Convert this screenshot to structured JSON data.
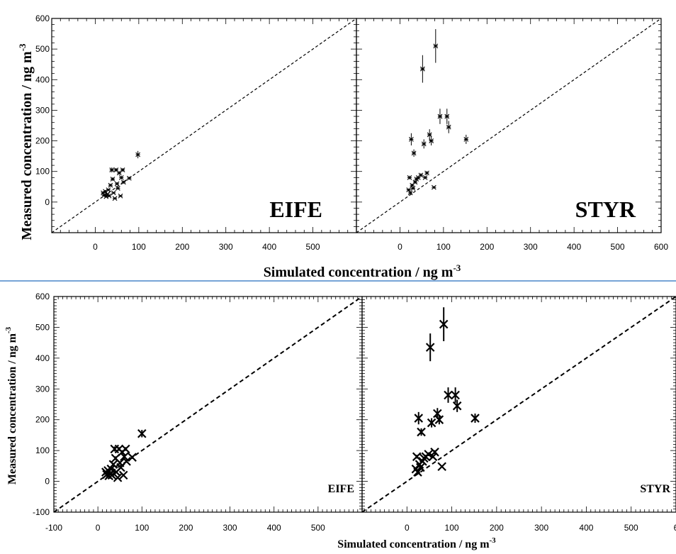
{
  "figure": {
    "top_ylabel": "Measured concentration /  ng m",
    "top_ylabel_sup": "-3",
    "top_xlabel": "Simulated concentration / ng m",
    "top_xlabel_sup": "-3",
    "bottom_ylabel": "Measured concentration / ng m",
    "bottom_ylabel_sup": "-3",
    "bottom_xlabel": "Simulated concentration / ng m",
    "bottom_xlabel_sup": "-3",
    "divider_color": "#4a86c8"
  },
  "chart_data": [
    {
      "id": "top-eife",
      "type": "scatter",
      "label": "EIFE",
      "xlim": [
        -100,
        600
      ],
      "ylim": [
        -100,
        600
      ],
      "xticks": [
        0,
        100,
        200,
        300,
        400,
        500
      ],
      "yticks": [
        0,
        100,
        200,
        300,
        400,
        500,
        600
      ],
      "reference_line": "1:1 dashed",
      "points": [
        {
          "x": 18,
          "y": 30,
          "err": 4
        },
        {
          "x": 20,
          "y": 22,
          "err": 3
        },
        {
          "x": 23,
          "y": 35,
          "err": 4
        },
        {
          "x": 25,
          "y": 18,
          "err": 3
        },
        {
          "x": 28,
          "y": 25,
          "err": 3
        },
        {
          "x": 30,
          "y": 40,
          "err": 4
        },
        {
          "x": 32,
          "y": 20,
          "err": 3
        },
        {
          "x": 35,
          "y": 55,
          "err": 5
        },
        {
          "x": 38,
          "y": 105,
          "err": 8
        },
        {
          "x": 40,
          "y": 75,
          "err": 6
        },
        {
          "x": 42,
          "y": 30,
          "err": 3
        },
        {
          "x": 45,
          "y": 12,
          "err": 3
        },
        {
          "x": 48,
          "y": 105,
          "err": 6
        },
        {
          "x": 50,
          "y": 60,
          "err": 5
        },
        {
          "x": 52,
          "y": 45,
          "err": 4
        },
        {
          "x": 55,
          "y": 95,
          "err": 6
        },
        {
          "x": 58,
          "y": 20,
          "err": 3
        },
        {
          "x": 60,
          "y": 80,
          "err": 6
        },
        {
          "x": 63,
          "y": 105,
          "err": 6
        },
        {
          "x": 65,
          "y": 65,
          "err": 5
        },
        {
          "x": 78,
          "y": 78,
          "err": 5
        },
        {
          "x": 98,
          "y": 155,
          "err": 12
        }
      ]
    },
    {
      "id": "top-styr",
      "type": "scatter",
      "label": "STYR",
      "xlim": [
        -100,
        600
      ],
      "ylim": [
        -100,
        600
      ],
      "xticks": [
        0,
        100,
        200,
        300,
        400,
        500,
        600
      ],
      "yticks": [
        0,
        100,
        200,
        300,
        400,
        500,
        600
      ],
      "reference_line": "1:1 dashed",
      "points": [
        {
          "x": 20,
          "y": 40,
          "err": 4
        },
        {
          "x": 22,
          "y": 80,
          "err": 6
        },
        {
          "x": 24,
          "y": 30,
          "err": 4
        },
        {
          "x": 26,
          "y": 205,
          "err": 20
        },
        {
          "x": 28,
          "y": 55,
          "err": 5
        },
        {
          "x": 30,
          "y": 45,
          "err": 4
        },
        {
          "x": 32,
          "y": 160,
          "err": 12
        },
        {
          "x": 35,
          "y": 65,
          "err": 5
        },
        {
          "x": 38,
          "y": 75,
          "err": 5
        },
        {
          "x": 42,
          "y": 80,
          "err": 6
        },
        {
          "x": 48,
          "y": 88,
          "err": 6
        },
        {
          "x": 52,
          "y": 435,
          "err": 45
        },
        {
          "x": 55,
          "y": 190,
          "err": 15
        },
        {
          "x": 58,
          "y": 80,
          "err": 5
        },
        {
          "x": 62,
          "y": 95,
          "err": 6
        },
        {
          "x": 68,
          "y": 220,
          "err": 18
        },
        {
          "x": 72,
          "y": 200,
          "err": 15
        },
        {
          "x": 78,
          "y": 48,
          "err": 4
        },
        {
          "x": 82,
          "y": 510,
          "err": 55
        },
        {
          "x": 92,
          "y": 280,
          "err": 25
        },
        {
          "x": 108,
          "y": 280,
          "err": 25
        },
        {
          "x": 112,
          "y": 245,
          "err": 20
        },
        {
          "x": 152,
          "y": 205,
          "err": 15
        }
      ]
    },
    {
      "id": "bottom-eife",
      "type": "scatter",
      "label": "EIFE",
      "xlim": [
        -100,
        600
      ],
      "ylim": [
        -100,
        600
      ],
      "xticks": [
        -100,
        0,
        100,
        200,
        300,
        400,
        500
      ],
      "yticks": [
        -100,
        0,
        100,
        200,
        300,
        400,
        500,
        600
      ],
      "reference_line": "1:1 dashed",
      "points": [
        {
          "x": 18,
          "y": 30,
          "err": 4
        },
        {
          "x": 20,
          "y": 22,
          "err": 3
        },
        {
          "x": 23,
          "y": 35,
          "err": 4
        },
        {
          "x": 25,
          "y": 18,
          "err": 3
        },
        {
          "x": 28,
          "y": 25,
          "err": 3
        },
        {
          "x": 30,
          "y": 40,
          "err": 4
        },
        {
          "x": 32,
          "y": 20,
          "err": 3
        },
        {
          "x": 35,
          "y": 55,
          "err": 5
        },
        {
          "x": 38,
          "y": 105,
          "err": 8
        },
        {
          "x": 40,
          "y": 75,
          "err": 6
        },
        {
          "x": 42,
          "y": 30,
          "err": 3
        },
        {
          "x": 45,
          "y": 12,
          "err": 3
        },
        {
          "x": 48,
          "y": 105,
          "err": 6
        },
        {
          "x": 50,
          "y": 60,
          "err": 5
        },
        {
          "x": 52,
          "y": 45,
          "err": 4
        },
        {
          "x": 55,
          "y": 95,
          "err": 6
        },
        {
          "x": 58,
          "y": 20,
          "err": 3
        },
        {
          "x": 60,
          "y": 80,
          "err": 6
        },
        {
          "x": 63,
          "y": 105,
          "err": 6
        },
        {
          "x": 65,
          "y": 65,
          "err": 5
        },
        {
          "x": 78,
          "y": 78,
          "err": 5
        },
        {
          "x": 100,
          "y": 155,
          "err": 12
        }
      ]
    },
    {
      "id": "bottom-styr",
      "type": "scatter",
      "label": "STYR",
      "xlim": [
        -100,
        600
      ],
      "ylim": [
        -100,
        600
      ],
      "xticks": [
        0,
        100,
        200,
        300,
        400,
        500
      ],
      "yticks": [],
      "clipped_tick_label": "6",
      "reference_line": "1:1 dashed",
      "points": [
        {
          "x": 20,
          "y": 40,
          "err": 4
        },
        {
          "x": 22,
          "y": 80,
          "err": 6
        },
        {
          "x": 24,
          "y": 30,
          "err": 4
        },
        {
          "x": 26,
          "y": 205,
          "err": 20
        },
        {
          "x": 28,
          "y": 55,
          "err": 5
        },
        {
          "x": 30,
          "y": 45,
          "err": 4
        },
        {
          "x": 32,
          "y": 160,
          "err": 12
        },
        {
          "x": 35,
          "y": 65,
          "err": 5
        },
        {
          "x": 38,
          "y": 75,
          "err": 5
        },
        {
          "x": 42,
          "y": 80,
          "err": 6
        },
        {
          "x": 48,
          "y": 88,
          "err": 6
        },
        {
          "x": 52,
          "y": 435,
          "err": 45
        },
        {
          "x": 55,
          "y": 190,
          "err": 15
        },
        {
          "x": 58,
          "y": 80,
          "err": 5
        },
        {
          "x": 62,
          "y": 95,
          "err": 6
        },
        {
          "x": 68,
          "y": 220,
          "err": 18
        },
        {
          "x": 72,
          "y": 200,
          "err": 15
        },
        {
          "x": 78,
          "y": 48,
          "err": 4
        },
        {
          "x": 82,
          "y": 510,
          "err": 55
        },
        {
          "x": 92,
          "y": 280,
          "err": 25
        },
        {
          "x": 108,
          "y": 280,
          "err": 25
        },
        {
          "x": 112,
          "y": 245,
          "err": 20
        },
        {
          "x": 152,
          "y": 205,
          "err": 15
        }
      ]
    }
  ]
}
